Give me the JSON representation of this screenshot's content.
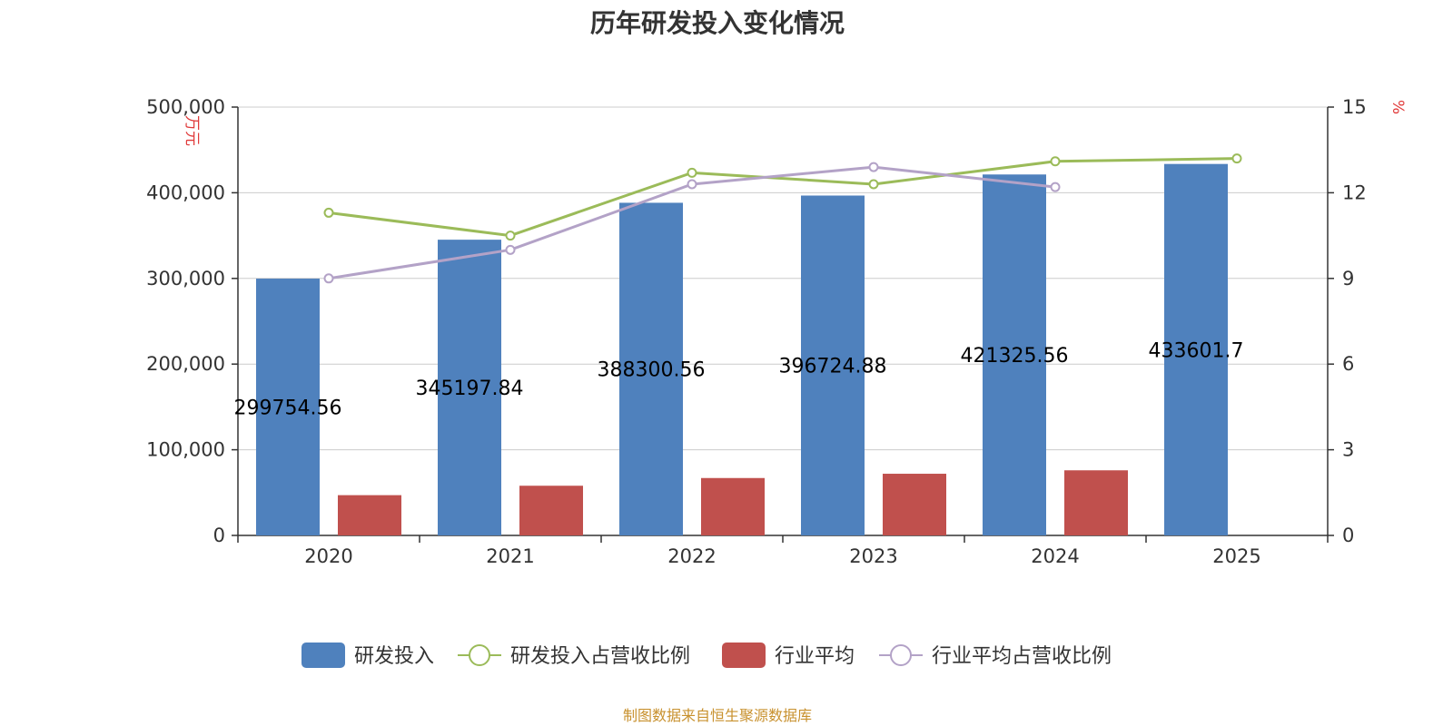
{
  "chart_data": {
    "type": "bar",
    "title": "历年研发投入变化情况",
    "categories": [
      "2020",
      "2021",
      "2022",
      "2023",
      "2024",
      "2025"
    ],
    "series": [
      {
        "name": "研发投入",
        "kind": "bar",
        "axis": "left",
        "color": "#4f81bd",
        "values": [
          299754.56,
          345197.84,
          388300.56,
          396724.88,
          421325.56,
          433601.7
        ],
        "labels": [
          "299754.56",
          "345197.84",
          "388300.56",
          "396724.88",
          "421325.56",
          "433601.7"
        ]
      },
      {
        "name": "研发投入占营收比例",
        "kind": "line",
        "axis": "right",
        "color": "#9bbb59",
        "values": [
          11.3,
          10.5,
          12.7,
          12.3,
          13.1,
          13.2
        ]
      },
      {
        "name": "行业平均",
        "kind": "bar",
        "axis": "left",
        "color": "#c0504d",
        "values": [
          47000,
          58000,
          67000,
          72000,
          76000,
          null
        ]
      },
      {
        "name": "行业平均占营收比例",
        "kind": "line",
        "axis": "right",
        "color": "#b3a2c7",
        "values": [
          9.0,
          10.0,
          12.3,
          12.9,
          12.2,
          null
        ]
      }
    ],
    "left_axis": {
      "unit_label": "万元",
      "min": 0,
      "max": 500000,
      "ticks": [
        0,
        100000,
        200000,
        300000,
        400000,
        500000
      ],
      "tick_labels": [
        "0",
        "100,000",
        "200,000",
        "300,000",
        "400,000",
        "500,000"
      ]
    },
    "right_axis": {
      "unit_label": "%",
      "min": 0,
      "max": 15,
      "ticks": [
        0,
        3,
        6,
        9,
        12,
        15
      ],
      "tick_labels": [
        "0",
        "3",
        "6",
        "9",
        "12",
        "15"
      ]
    },
    "grid": true,
    "legend_position": "bottom"
  },
  "footer": {
    "source": "制图数据来自恒生聚源数据库"
  },
  "colors": {
    "axis_unit": "#e03a3a",
    "grid": "#cccccc",
    "axis": "#333333"
  }
}
